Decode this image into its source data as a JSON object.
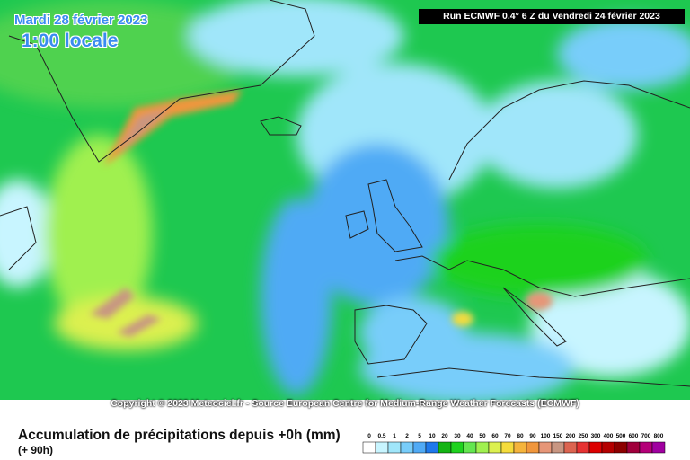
{
  "header": {
    "date": "Mardi 28 février 2023",
    "time": "1:00 locale",
    "run": "Run ECMWF 0.4° 6 Z du Vendredi 24 février 2023"
  },
  "copyright": "Copyright © 2023 Meteociel.fr - Source European Centre for Medium-Range Weather Forecasts (ECMWF)",
  "legend": {
    "title": "Accumulation de précipitations depuis +0h (mm)",
    "subtitle": "(+ 90h)",
    "scale": [
      0,
      0.5,
      1,
      2,
      5,
      10,
      20,
      30,
      40,
      50,
      60,
      70,
      80,
      90,
      100,
      150,
      200,
      250,
      300,
      400,
      500,
      600,
      700,
      800
    ],
    "colors": [
      "#ffffff",
      "#c8f5ff",
      "#a0e6fa",
      "#78cdfa",
      "#50aaf5",
      "#1e78eb",
      "#14b414",
      "#1ed21e",
      "#64e650",
      "#a0f050",
      "#dcf050",
      "#f5dc3c",
      "#f5b43c",
      "#f0963c",
      "#e69678",
      "#c89682",
      "#dc6450",
      "#e63232",
      "#dc0000",
      "#b40000",
      "#8c0000",
      "#a0003c",
      "#b40078",
      "#a000a0"
    ]
  }
}
